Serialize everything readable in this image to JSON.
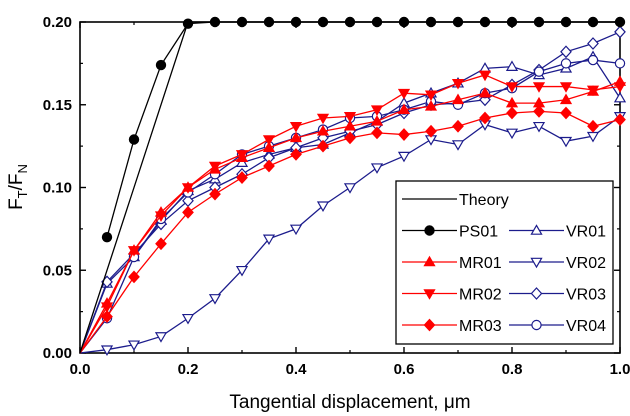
{
  "chart_data": {
    "type": "line",
    "title": "",
    "xlabel": "Tangential displacement, μm",
    "ylabel_main": "F",
    "ylabel_sub1": "T",
    "ylabel_sep": "/F",
    "ylabel_sub2": "N",
    "xlim": [
      0.0,
      1.0
    ],
    "ylim": [
      0.0,
      0.2
    ],
    "x_ticks": [
      "0.0",
      "0.2",
      "0.4",
      "0.6",
      "0.8",
      "1.0"
    ],
    "y_ticks": [
      "0.00",
      "0.05",
      "0.10",
      "0.15",
      "0.20"
    ],
    "grid": false,
    "legend_position": "bottom-right",
    "series": [
      {
        "name": "Theory",
        "color": "#000000",
        "marker": "none",
        "x": [
          0,
          0.2,
          1.0
        ],
        "y": [
          0,
          0.2,
          0.2
        ]
      },
      {
        "name": "PS01",
        "color": "#000000",
        "marker": "circle-filled",
        "x": [
          0.05,
          0.1,
          0.15,
          0.2,
          0.25,
          0.3,
          0.35,
          0.4,
          0.45,
          0.5,
          0.55,
          0.6,
          0.65,
          0.7,
          0.75,
          0.8,
          0.85,
          0.9,
          0.95,
          1.0
        ],
        "y": [
          0.07,
          0.129,
          0.174,
          0.199,
          0.2,
          0.2,
          0.2,
          0.2,
          0.2,
          0.2,
          0.2,
          0.2,
          0.2,
          0.2,
          0.2,
          0.2,
          0.2,
          0.2,
          0.2,
          0.2
        ]
      },
      {
        "name": "MR01",
        "color": "#ff0000",
        "marker": "triangle-up-filled",
        "x": [
          0,
          0.05,
          0.1,
          0.15,
          0.2,
          0.25,
          0.3,
          0.35,
          0.4,
          0.45,
          0.5,
          0.55,
          0.6,
          0.65,
          0.7,
          0.75,
          0.8,
          0.85,
          0.9,
          0.95,
          1.0
        ],
        "y": [
          0,
          0.03,
          0.062,
          0.085,
          0.1,
          0.111,
          0.118,
          0.124,
          0.13,
          0.134,
          0.137,
          0.14,
          0.147,
          0.149,
          0.153,
          0.157,
          0.151,
          0.151,
          0.153,
          0.158,
          0.164
        ]
      },
      {
        "name": "MR02",
        "color": "#ff0000",
        "marker": "triangle-down-filled",
        "x": [
          0,
          0.05,
          0.1,
          0.15,
          0.2,
          0.25,
          0.3,
          0.35,
          0.4,
          0.45,
          0.5,
          0.55,
          0.6,
          0.65,
          0.7,
          0.75,
          0.8,
          0.85,
          0.9,
          0.95,
          1.0
        ],
        "y": [
          0,
          0.028,
          0.062,
          0.083,
          0.1,
          0.113,
          0.12,
          0.129,
          0.137,
          0.142,
          0.143,
          0.147,
          0.157,
          0.156,
          0.163,
          0.168,
          0.161,
          0.161,
          0.161,
          0.159,
          0.161
        ]
      },
      {
        "name": "MR03",
        "color": "#ff0000",
        "marker": "diamond-filled",
        "x": [
          0,
          0.05,
          0.1,
          0.15,
          0.2,
          0.25,
          0.3,
          0.35,
          0.4,
          0.45,
          0.5,
          0.55,
          0.6,
          0.65,
          0.7,
          0.75,
          0.8,
          0.85,
          0.9,
          0.95,
          1.0
        ],
        "y": [
          0,
          0.022,
          0.046,
          0.066,
          0.085,
          0.096,
          0.106,
          0.113,
          0.12,
          0.125,
          0.13,
          0.133,
          0.132,
          0.134,
          0.137,
          0.142,
          0.145,
          0.146,
          0.145,
          0.137,
          0.141
        ]
      },
      {
        "name": "VR01",
        "color": "#1c1c8c",
        "marker": "triangle-up-open",
        "x": [
          0,
          0.05,
          0.1,
          0.15,
          0.2,
          0.25,
          0.3,
          0.35,
          0.4,
          0.45,
          0.5,
          0.55,
          0.6,
          0.65,
          0.7,
          0.75,
          0.8,
          0.85,
          0.9,
          0.95,
          1.0
        ],
        "y": [
          0,
          0.042,
          0.058,
          0.08,
          0.098,
          0.105,
          0.115,
          0.12,
          0.124,
          0.126,
          0.133,
          0.14,
          0.151,
          0.157,
          0.163,
          0.172,
          0.173,
          0.168,
          0.172,
          0.179,
          0.154
        ]
      },
      {
        "name": "VR02",
        "color": "#1c1c8c",
        "marker": "triangle-down-open",
        "x": [
          0,
          0.05,
          0.1,
          0.15,
          0.2,
          0.25,
          0.3,
          0.35,
          0.4,
          0.45,
          0.5,
          0.55,
          0.6,
          0.65,
          0.7,
          0.75,
          0.8,
          0.85,
          0.9,
          0.95,
          1.0
        ],
        "y": [
          0,
          0.002,
          0.005,
          0.01,
          0.021,
          0.033,
          0.05,
          0.069,
          0.075,
          0.089,
          0.1,
          0.112,
          0.119,
          0.129,
          0.126,
          0.138,
          0.133,
          0.137,
          0.128,
          0.131,
          0.143
        ]
      },
      {
        "name": "VR03",
        "color": "#1c1c8c",
        "marker": "diamond-open",
        "x": [
          0,
          0.05,
          0.1,
          0.15,
          0.2,
          0.25,
          0.3,
          0.35,
          0.4,
          0.45,
          0.5,
          0.55,
          0.6,
          0.65,
          0.7,
          0.75,
          0.8,
          0.85,
          0.9,
          0.95,
          1.0
        ],
        "y": [
          0,
          0.043,
          0.06,
          0.078,
          0.092,
          0.1,
          0.108,
          0.118,
          0.124,
          0.13,
          0.134,
          0.138,
          0.145,
          0.15,
          0.151,
          0.153,
          0.162,
          0.171,
          0.182,
          0.187,
          0.194
        ]
      },
      {
        "name": "VR04",
        "color": "#1c1c8c",
        "marker": "circle-open",
        "x": [
          0,
          0.05,
          0.1,
          0.15,
          0.2,
          0.25,
          0.3,
          0.35,
          0.4,
          0.45,
          0.5,
          0.55,
          0.6,
          0.65,
          0.7,
          0.75,
          0.8,
          0.85,
          0.9,
          0.95,
          1.0
        ],
        "y": [
          0,
          0.021,
          0.058,
          0.081,
          0.097,
          0.108,
          0.12,
          0.125,
          0.13,
          0.135,
          0.142,
          0.143,
          0.147,
          0.152,
          0.15,
          0.157,
          0.16,
          0.17,
          0.175,
          0.177,
          0.175
        ]
      }
    ],
    "legend_rows": [
      [
        "Theory"
      ],
      [
        "PS01",
        "VR01"
      ],
      [
        "MR01",
        "VR02"
      ],
      [
        "MR02",
        "VR03"
      ],
      [
        "MR03",
        "VR04"
      ]
    ]
  }
}
